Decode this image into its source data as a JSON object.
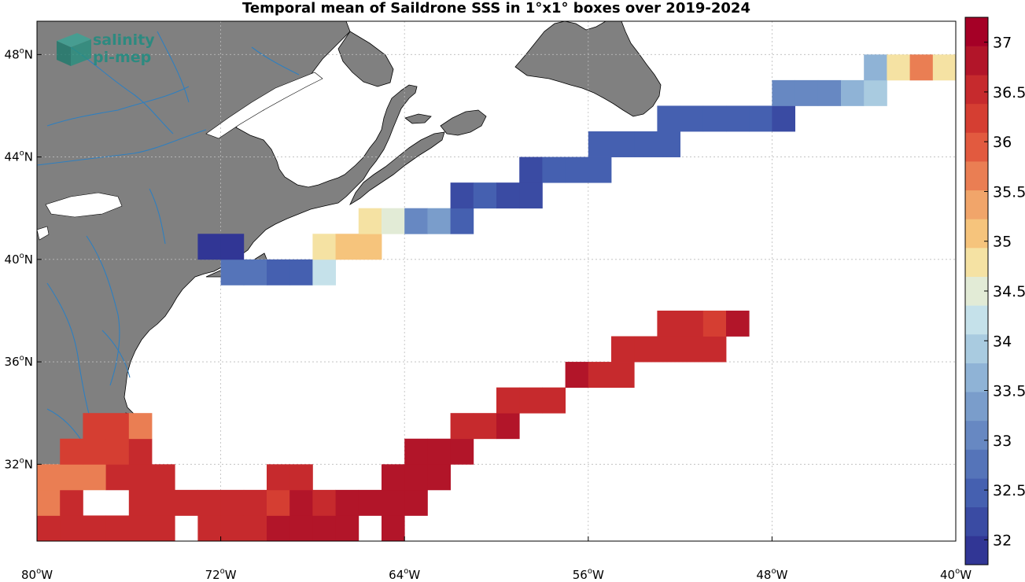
{
  "title": "Temporal mean of Saildrone SSS in 1°x1° boxes over 2019-2024",
  "logo": {
    "line1": "salinity",
    "line2": "pi-mep",
    "icon": "cube-logo-icon"
  },
  "axes": {
    "x_ticks": [
      {
        "value": -80,
        "label": "80",
        "hemi": "W"
      },
      {
        "value": -72,
        "label": "72",
        "hemi": "W"
      },
      {
        "value": -64,
        "label": "64",
        "hemi": "W"
      },
      {
        "value": -56,
        "label": "56",
        "hemi": "W"
      },
      {
        "value": -48,
        "label": "48",
        "hemi": "W"
      },
      {
        "value": -40,
        "label": "40",
        "hemi": "W"
      }
    ],
    "y_ticks": [
      {
        "value": 32,
        "label": "32",
        "hemi": "N"
      },
      {
        "value": 36,
        "label": "36",
        "hemi": "N"
      },
      {
        "value": 40,
        "label": "40",
        "hemi": "N"
      },
      {
        "value": 44,
        "label": "44",
        "hemi": "N"
      },
      {
        "value": 48,
        "label": "48",
        "hemi": "N"
      }
    ],
    "degree_symbol": "o",
    "lon_range": [
      -80,
      -40
    ],
    "lat_range": [
      29.0,
      49.3
    ]
  },
  "colorbar": {
    "min": 31.75,
    "max": 37.25,
    "step": 0.25,
    "tick_labels": [
      "32",
      "32.5",
      "33",
      "33.5",
      "34",
      "34.5",
      "35",
      "35.5",
      "36",
      "36.5",
      "37"
    ],
    "colors": [
      "#313695",
      "#3a4ba3",
      "#4560b0",
      "#5574b9",
      "#6788c2",
      "#7a9dcb",
      "#8fb3d6",
      "#a9cbe0",
      "#c5e1ea",
      "#e2ebd6",
      "#f5e2a3",
      "#f6c47c",
      "#f1a56a",
      "#ea7e53",
      "#e25a3f",
      "#d53e32",
      "#c62a2d",
      "#b21529",
      "#a50026"
    ]
  },
  "colors": {
    "land": "#808080",
    "coast": "#000000",
    "river": "#2f7fbf",
    "grid": "#bbbbbb"
  },
  "chart_data": {
    "type": "heatmap",
    "description_units": "sea surface salinity (pss)",
    "cell_size_deg": 1,
    "cells": [
      {
        "lon": -80,
        "lat": 29,
        "v": 36.6
      },
      {
        "lon": -79,
        "lat": 29,
        "v": 36.6
      },
      {
        "lon": -78,
        "lat": 29,
        "v": 36.6
      },
      {
        "lon": -77,
        "lat": 29,
        "v": 36.4
      },
      {
        "lon": -76,
        "lat": 29,
        "v": 36.4
      },
      {
        "lon": -75,
        "lat": 29,
        "v": 36.5
      },
      {
        "lon": -73,
        "lat": 29,
        "v": 36.6
      },
      {
        "lon": -72,
        "lat": 29,
        "v": 36.6
      },
      {
        "lon": -71,
        "lat": 29,
        "v": 36.6
      },
      {
        "lon": -70,
        "lat": 29,
        "v": 36.7
      },
      {
        "lon": -69,
        "lat": 29,
        "v": 36.8
      },
      {
        "lon": -68,
        "lat": 29,
        "v": 36.8
      },
      {
        "lon": -67,
        "lat": 29,
        "v": 36.8
      },
      {
        "lon": -65,
        "lat": 29,
        "v": 36.8
      },
      {
        "lon": -80,
        "lat": 30,
        "v": 35.8
      },
      {
        "lon": -79,
        "lat": 30,
        "v": 36.5
      },
      {
        "lon": -76,
        "lat": 30,
        "v": 36.4
      },
      {
        "lon": -75,
        "lat": 30,
        "v": 36.4
      },
      {
        "lon": -74,
        "lat": 30,
        "v": 36.6
      },
      {
        "lon": -73,
        "lat": 30,
        "v": 36.6
      },
      {
        "lon": -72,
        "lat": 30,
        "v": 36.6
      },
      {
        "lon": -71,
        "lat": 30,
        "v": 36.6
      },
      {
        "lon": -70,
        "lat": 30,
        "v": 36.3
      },
      {
        "lon": -69,
        "lat": 30,
        "v": 36.9
      },
      {
        "lon": -68,
        "lat": 30,
        "v": 36.5
      },
      {
        "lon": -67,
        "lat": 30,
        "v": 36.8
      },
      {
        "lon": -66,
        "lat": 30,
        "v": 36.8
      },
      {
        "lon": -65,
        "lat": 30,
        "v": 36.8
      },
      {
        "lon": -64,
        "lat": 30,
        "v": 36.8
      },
      {
        "lon": -80,
        "lat": 31,
        "v": 35.8
      },
      {
        "lon": -79,
        "lat": 31,
        "v": 35.8
      },
      {
        "lon": -78,
        "lat": 31,
        "v": 35.8
      },
      {
        "lon": -77,
        "lat": 31,
        "v": 36.5
      },
      {
        "lon": -76,
        "lat": 31,
        "v": 36.5
      },
      {
        "lon": -75,
        "lat": 31,
        "v": 36.5
      },
      {
        "lon": -70,
        "lat": 31,
        "v": 36.6
      },
      {
        "lon": -69,
        "lat": 31,
        "v": 36.6
      },
      {
        "lon": -65,
        "lat": 31,
        "v": 36.8
      },
      {
        "lon": -64,
        "lat": 31,
        "v": 36.8
      },
      {
        "lon": -63,
        "lat": 31,
        "v": 36.8
      },
      {
        "lon": -79,
        "lat": 32,
        "v": 36.2
      },
      {
        "lon": -78,
        "lat": 32,
        "v": 36.2
      },
      {
        "lon": -77,
        "lat": 32,
        "v": 36.2
      },
      {
        "lon": -76,
        "lat": 32,
        "v": 36.5
      },
      {
        "lon": -64,
        "lat": 32,
        "v": 36.8
      },
      {
        "lon": -63,
        "lat": 32,
        "v": 36.8
      },
      {
        "lon": -62,
        "lat": 32,
        "v": 36.8
      },
      {
        "lon": -78,
        "lat": 33,
        "v": 36.3
      },
      {
        "lon": -77,
        "lat": 33,
        "v": 36.2
      },
      {
        "lon": -76,
        "lat": 33,
        "v": 35.6
      },
      {
        "lon": -62,
        "lat": 33,
        "v": 36.6
      },
      {
        "lon": -61,
        "lat": 33,
        "v": 36.5
      },
      {
        "lon": -60,
        "lat": 33,
        "v": 36.8
      },
      {
        "lon": -60,
        "lat": 34,
        "v": 36.6
      },
      {
        "lon": -59,
        "lat": 34,
        "v": 36.6
      },
      {
        "lon": -58,
        "lat": 34,
        "v": 36.6
      },
      {
        "lon": -57,
        "lat": 35,
        "v": 36.8
      },
      {
        "lon": -56,
        "lat": 35,
        "v": 36.6
      },
      {
        "lon": -55,
        "lat": 35,
        "v": 36.6
      },
      {
        "lon": -55,
        "lat": 36,
        "v": 36.6
      },
      {
        "lon": -54,
        "lat": 36,
        "v": 36.6
      },
      {
        "lon": -53,
        "lat": 36,
        "v": 36.6
      },
      {
        "lon": -52,
        "lat": 36,
        "v": 36.6
      },
      {
        "lon": -51,
        "lat": 36,
        "v": 36.6
      },
      {
        "lon": -53,
        "lat": 37,
        "v": 36.6
      },
      {
        "lon": -52,
        "lat": 37,
        "v": 36.6
      },
      {
        "lon": -51,
        "lat": 37,
        "v": 36.3
      },
      {
        "lon": -50,
        "lat": 37,
        "v": 36.8
      },
      {
        "lon": -72,
        "lat": 39,
        "v": 32.8
      },
      {
        "lon": -71,
        "lat": 39,
        "v": 32.8
      },
      {
        "lon": -70,
        "lat": 39,
        "v": 32.6
      },
      {
        "lon": -69,
        "lat": 39,
        "v": 32.6
      },
      {
        "lon": -68,
        "lat": 39,
        "v": 34.3
      },
      {
        "lon": -73,
        "lat": 40,
        "v": 32.0
      },
      {
        "lon": -72,
        "lat": 40,
        "v": 32.0
      },
      {
        "lon": -68,
        "lat": 40,
        "v": 34.9
      },
      {
        "lon": -67,
        "lat": 40,
        "v": 35.1
      },
      {
        "lon": -66,
        "lat": 40,
        "v": 35.1
      },
      {
        "lon": -66,
        "lat": 41,
        "v": 34.9
      },
      {
        "lon": -65,
        "lat": 41,
        "v": 34.6
      },
      {
        "lon": -64,
        "lat": 41,
        "v": 33.1
      },
      {
        "lon": -63,
        "lat": 41,
        "v": 33.3
      },
      {
        "lon": -62,
        "lat": 41,
        "v": 32.6
      },
      {
        "lon": -62,
        "lat": 42,
        "v": 32.2
      },
      {
        "lon": -61,
        "lat": 42,
        "v": 32.5
      },
      {
        "lon": -60,
        "lat": 42,
        "v": 32.2
      },
      {
        "lon": -59,
        "lat": 42,
        "v": 32.2
      },
      {
        "lon": -59,
        "lat": 43,
        "v": 32.1
      },
      {
        "lon": -58,
        "lat": 43,
        "v": 32.5
      },
      {
        "lon": -57,
        "lat": 43,
        "v": 32.5
      },
      {
        "lon": -56,
        "lat": 43,
        "v": 32.5
      },
      {
        "lon": -56,
        "lat": 44,
        "v": 32.6
      },
      {
        "lon": -55,
        "lat": 44,
        "v": 32.6
      },
      {
        "lon": -54,
        "lat": 44,
        "v": 32.6
      },
      {
        "lon": -53,
        "lat": 44,
        "v": 32.6
      },
      {
        "lon": -53,
        "lat": 45,
        "v": 32.6
      },
      {
        "lon": -52,
        "lat": 45,
        "v": 32.6
      },
      {
        "lon": -51,
        "lat": 45,
        "v": 32.6
      },
      {
        "lon": -50,
        "lat": 45,
        "v": 32.4
      },
      {
        "lon": -49,
        "lat": 45,
        "v": 32.4
      },
      {
        "lon": -48,
        "lat": 45,
        "v": 32.2
      },
      {
        "lon": -48,
        "lat": 46,
        "v": 33.0
      },
      {
        "lon": -47,
        "lat": 46,
        "v": 33.0
      },
      {
        "lon": -46,
        "lat": 46,
        "v": 33.0
      },
      {
        "lon": -45,
        "lat": 46,
        "v": 33.5
      },
      {
        "lon": -44,
        "lat": 46,
        "v": 33.8
      },
      {
        "lon": -44,
        "lat": 47,
        "v": 33.5
      },
      {
        "lon": -43,
        "lat": 47,
        "v": 34.9
      },
      {
        "lon": -42,
        "lat": 47,
        "v": 35.8
      },
      {
        "lon": -41,
        "lat": 47,
        "v": 34.9
      }
    ]
  }
}
